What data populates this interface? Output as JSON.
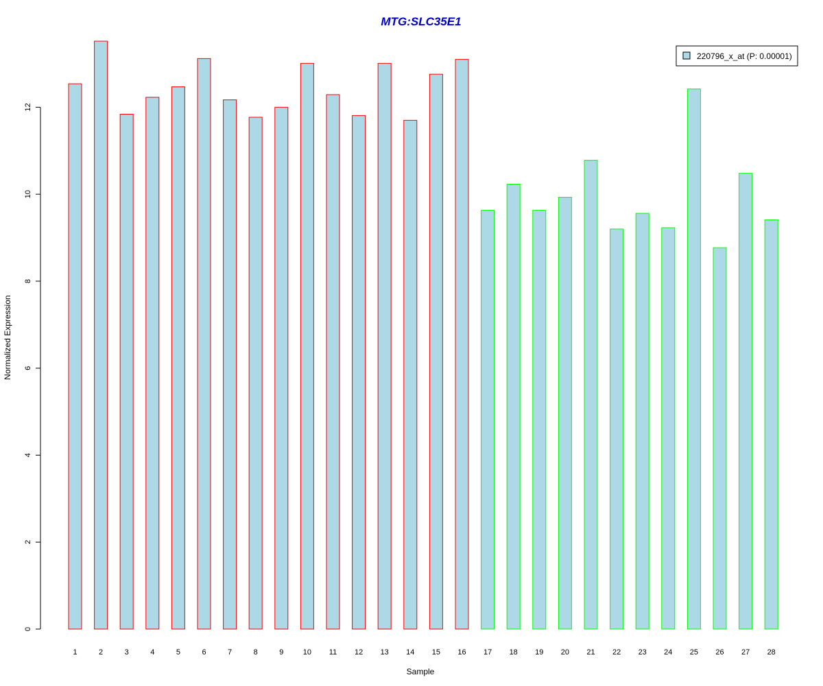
{
  "chart_data": {
    "type": "bar",
    "title": "MTG:SLC35E1",
    "xlabel": "Sample",
    "ylabel": "Normalized Expression",
    "categories": [
      "1",
      "2",
      "3",
      "4",
      "5",
      "6",
      "7",
      "8",
      "9",
      "10",
      "11",
      "12",
      "13",
      "14",
      "15",
      "16",
      "17",
      "18",
      "19",
      "20",
      "21",
      "22",
      "23",
      "24",
      "25",
      "26",
      "27",
      "28"
    ],
    "series": [
      {
        "name": "220796_x_at (P: 0.00001)",
        "values": [
          12.54,
          13.52,
          11.84,
          12.23,
          12.47,
          13.12,
          12.17,
          11.77,
          12.0,
          13.01,
          12.29,
          11.81,
          13.01,
          11.7,
          12.76,
          13.1,
          9.63,
          10.23,
          9.63,
          9.93,
          10.78,
          9.2,
          9.56,
          9.23,
          12.42,
          8.77,
          10.48,
          9.41
        ]
      }
    ],
    "group_border_colors": [
      "#ff0000",
      "#ff0000",
      "#ff0000",
      "#ff0000",
      "#ff0000",
      "#ff0000",
      "#ff0000",
      "#ff0000",
      "#ff0000",
      "#ff0000",
      "#ff0000",
      "#ff0000",
      "#ff0000",
      "#ff0000",
      "#ff0000",
      "#ff0000",
      "#00ff00",
      "#00ff00",
      "#00ff00",
      "#00ff00",
      "#00ff00",
      "#00ff00",
      "#00ff00",
      "#00ff00",
      "#00ff00",
      "#00ff00",
      "#00ff00",
      "#00ff00"
    ],
    "bar_fill": "#add8e6",
    "title_color": "#0000cc",
    "yticks": [
      0,
      2,
      4,
      6,
      8,
      10,
      12
    ],
    "ylim": [
      0,
      13.52
    ],
    "grid": false,
    "legend_position": "top-right"
  }
}
